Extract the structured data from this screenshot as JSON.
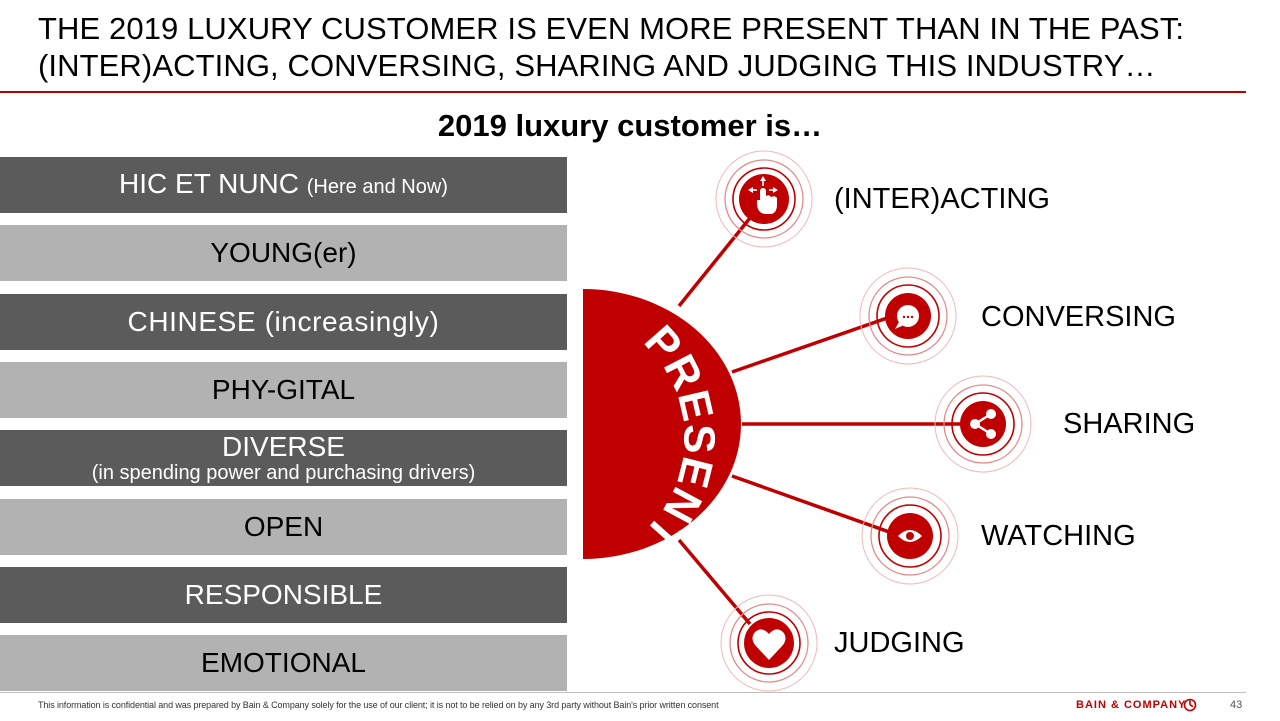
{
  "header": {
    "title_line1": "THE 2019 LUXURY CUSTOMER IS EVEN MORE PRESENT THAN IN THE PAST:",
    "title_line2": "(INTER)ACTING, CONVERSING, SHARING AND JUDGING THIS INDUSTRY…"
  },
  "subtitle": "2019 luxury customer is…",
  "attributes": [
    {
      "main": "HIC ET NUNC ",
      "paren": "(Here and Now)",
      "shade": "dark"
    },
    {
      "main": "YOUNG(er)",
      "shade": "light"
    },
    {
      "main": "CHINESE (increasingly)",
      "shade": "dark"
    },
    {
      "main": "PHY-GITAL",
      "shade": "light"
    },
    {
      "main": "DIVERSE",
      "sub": "(in spending power and purchasing drivers)",
      "shade": "dark"
    },
    {
      "main": "OPEN",
      "shade": "light"
    },
    {
      "main": "RESPONSIBLE",
      "shade": "dark"
    },
    {
      "main": "EMOTIONAL",
      "shade": "light"
    }
  ],
  "center_label": "PRESENT",
  "behaviors": [
    {
      "label": "(INTER)ACTING",
      "icon": "hand-pointer-icon"
    },
    {
      "label": "CONVERSING",
      "icon": "speech-bubble-icon"
    },
    {
      "label": "SHARING",
      "icon": "share-icon"
    },
    {
      "label": "WATCHING",
      "icon": "eye-icon"
    },
    {
      "label": "JUDGING",
      "icon": "heart-icon"
    }
  ],
  "colors": {
    "accent_red": "#c00000",
    "dark_bar": "#5b5b5b",
    "light_bar": "#b2b2b2"
  },
  "footer": {
    "disclaimer": "This information is confidential and was prepared by Bain & Company solely for the use of our client; it is not to be relied on by any 3rd party without Bain's prior written consent",
    "brand": "BAIN & COMPANY",
    "page": "43"
  }
}
